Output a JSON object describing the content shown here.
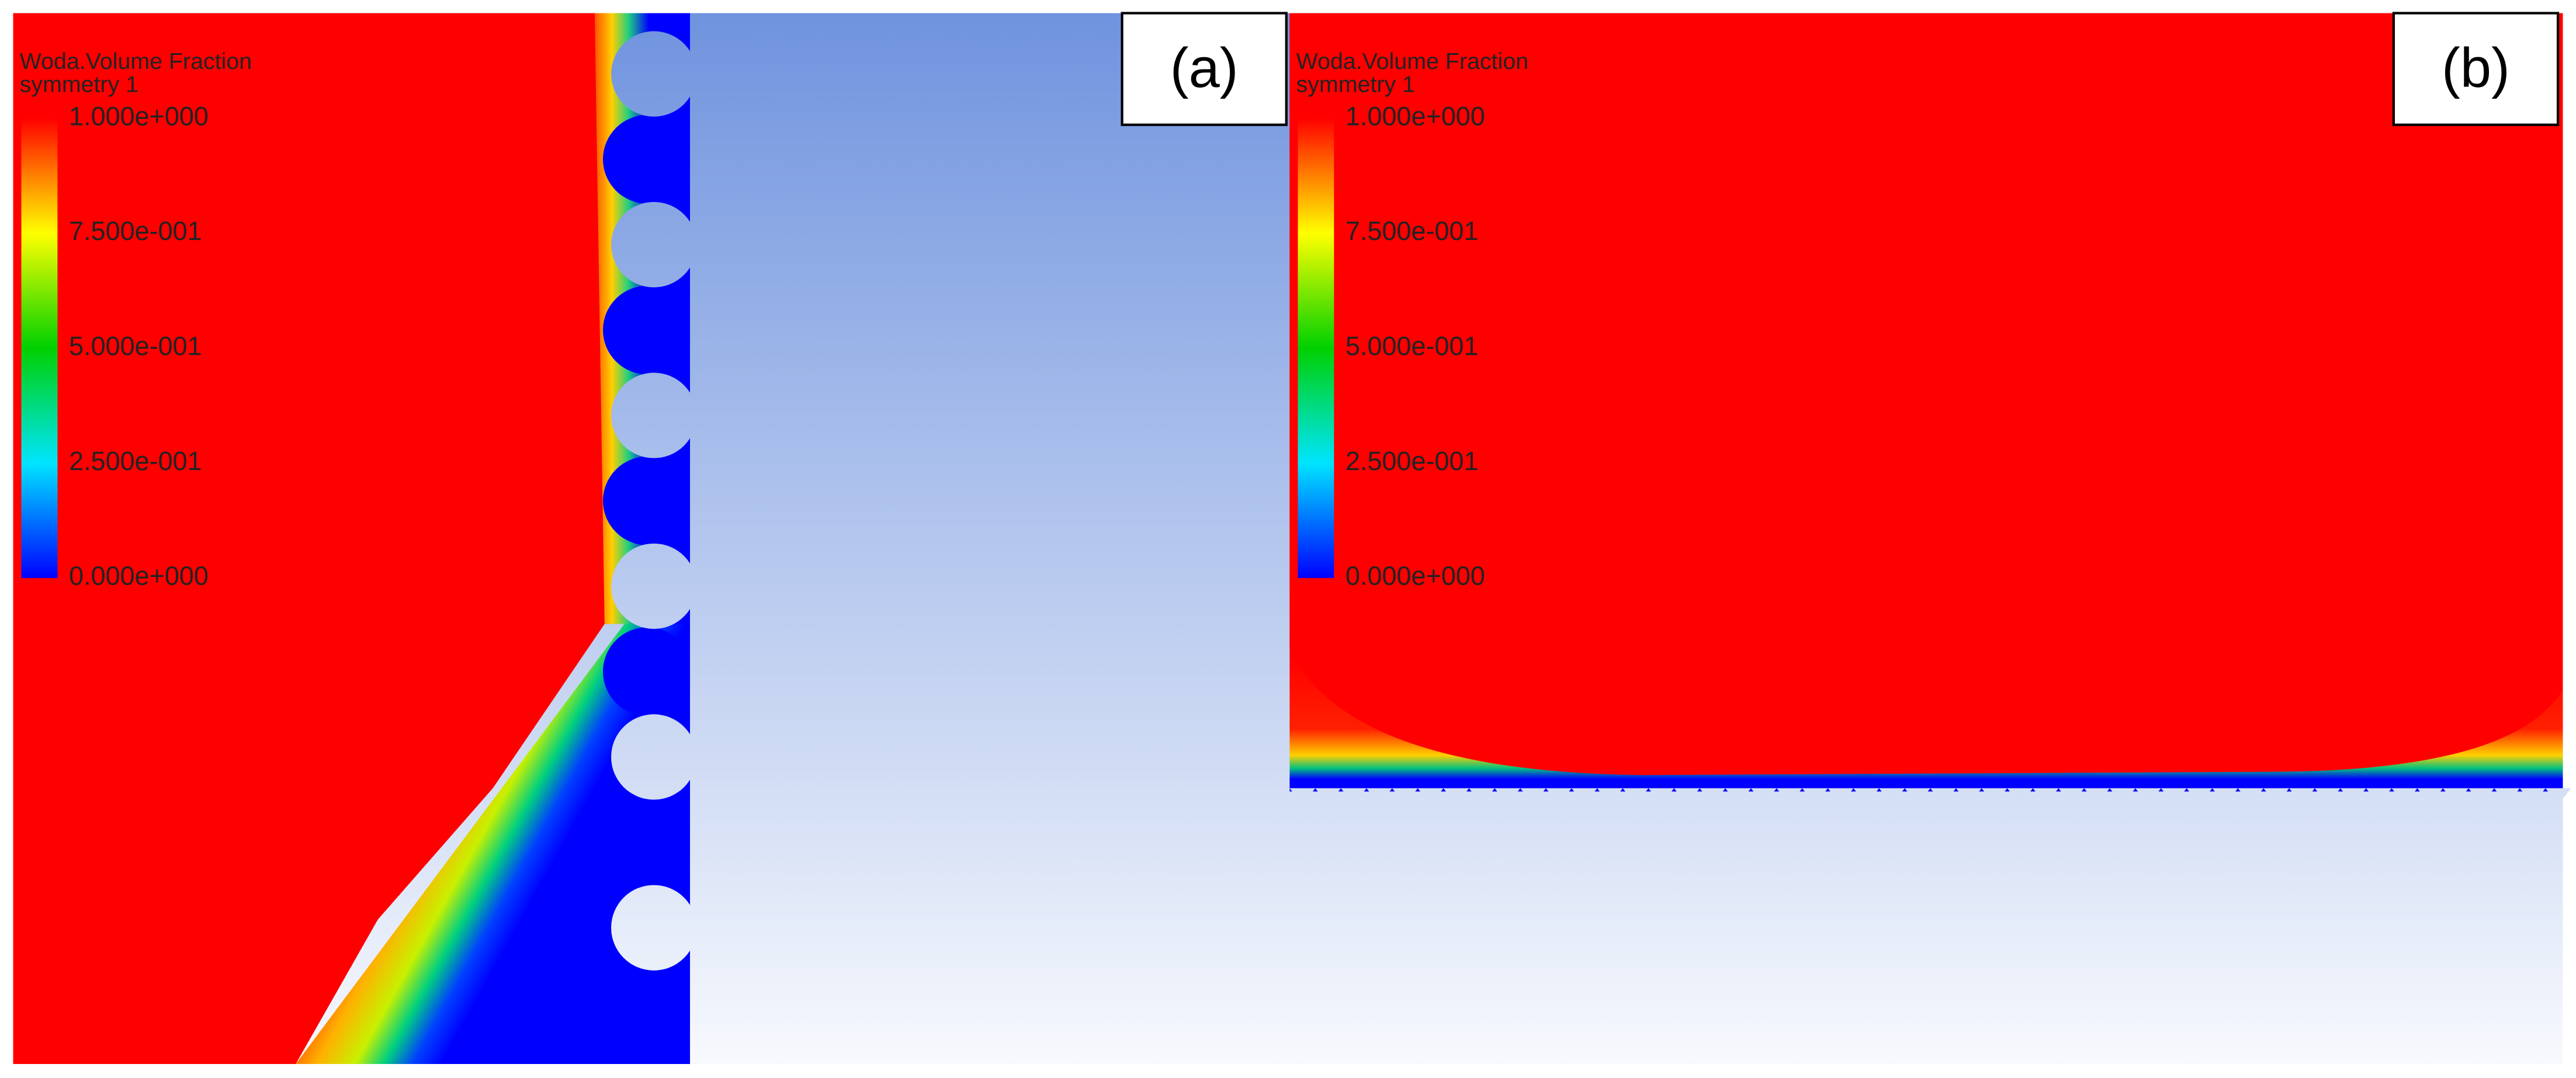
{
  "panels": [
    {
      "label": "(a)",
      "legend": {
        "title": "Woda.Volume Fraction",
        "subtitle": "symmetry 1",
        "ticks": [
          "1.000e+000",
          "7.500e-001",
          "5.000e-001",
          "2.500e-001",
          "0.000e+000"
        ]
      }
    },
    {
      "label": "(b)",
      "legend": {
        "title": "Woda.Volume Fraction",
        "subtitle": "symmetry 1",
        "ticks": [
          "1.000e+000",
          "7.500e-001",
          "5.000e-001",
          "2.500e-001",
          "0.000e+000"
        ]
      }
    }
  ]
}
